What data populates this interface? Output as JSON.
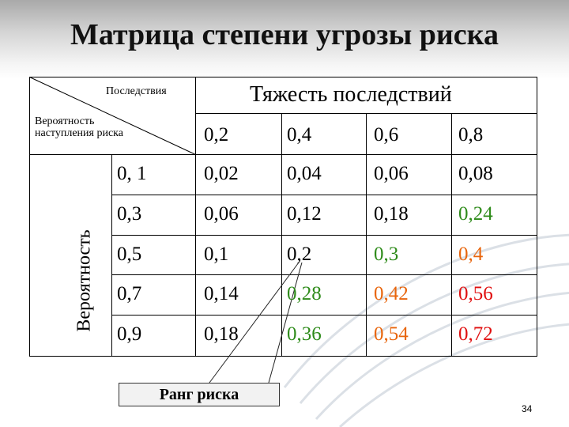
{
  "title": "Матрица степени угрозы риска",
  "header": {
    "consequences": "Последствия",
    "probability_label": "Вероятность наступления риска",
    "severity": "Тяжесть последствий",
    "vertical": "Вероятность"
  },
  "columns": [
    "0,2",
    "0,4",
    "0,6",
    "0,8"
  ],
  "rows": [
    {
      "p": "0, 1",
      "values": [
        "0,02",
        "0,04",
        "0,06",
        "0,08"
      ]
    },
    {
      "p": "0,3",
      "values": [
        "0,06",
        "0,12",
        "0,18",
        "0,24"
      ]
    },
    {
      "p": "0,5",
      "values": [
        "0,1",
        "0,2",
        "0,3",
        "0,4"
      ]
    },
    {
      "p": "0,7",
      "values": [
        "0,14",
        "0,28",
        "0,42",
        "0,56"
      ]
    },
    {
      "p": "0,9",
      "values": [
        "0,18",
        "0,36",
        "0,54",
        "0,72"
      ]
    }
  ],
  "colors": {
    "blue": "#1f3fbf",
    "green": "#2e8b1a",
    "orange": "#e8650c",
    "red": "#e01010"
  },
  "callout": "Ранг риска",
  "page_number": "34"
}
